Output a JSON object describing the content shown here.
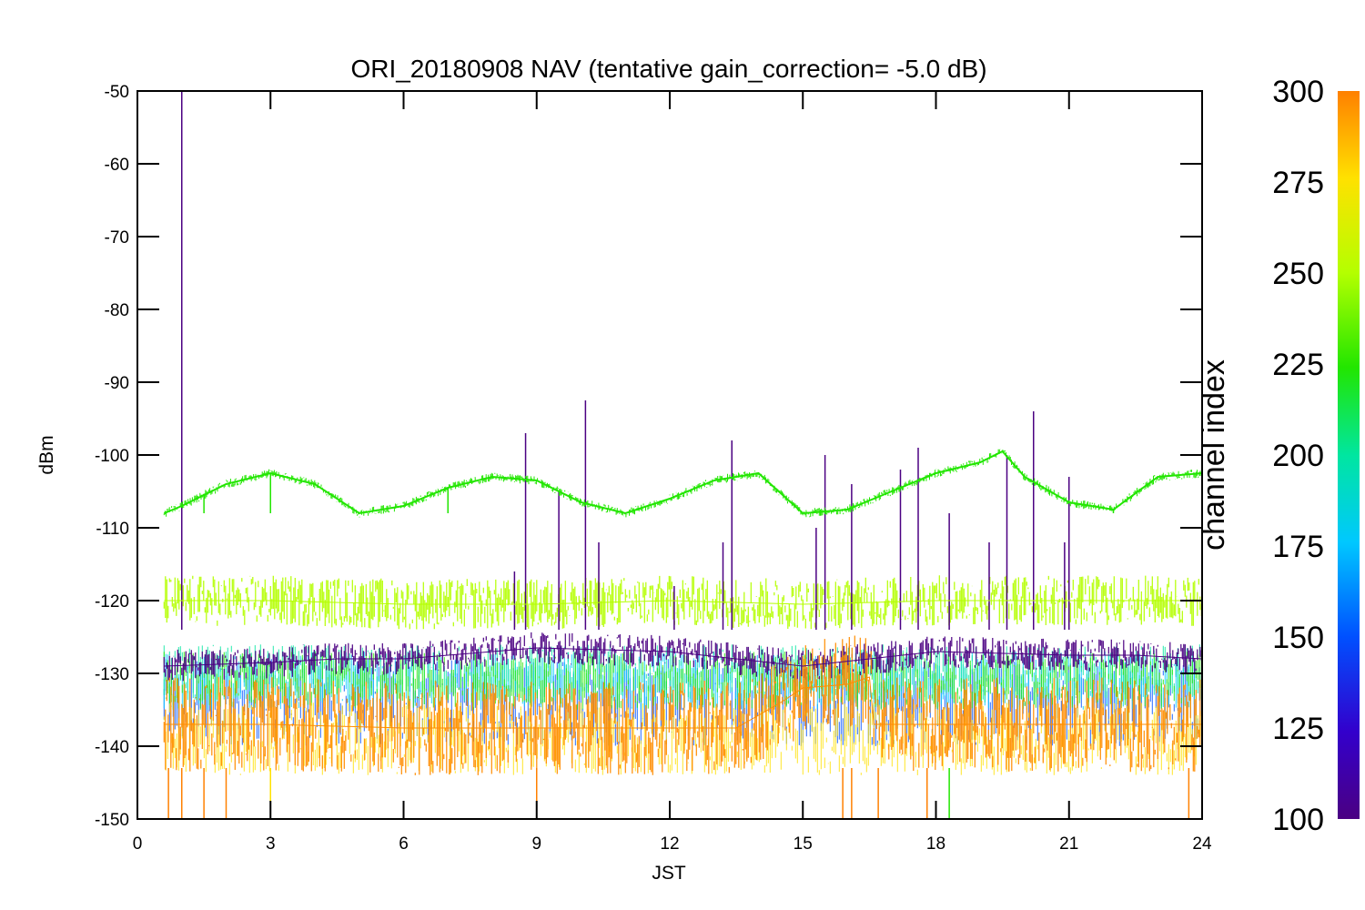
{
  "chart_data": {
    "type": "line",
    "title": "ORI_20180908 NAV (tentative gain_correction= -5.0 dB)",
    "xlabel": "JST",
    "ylabel": "dBm",
    "xlim": [
      0,
      24
    ],
    "ylim": [
      -150,
      -50
    ],
    "xticks": [
      "0",
      "3",
      "6",
      "9",
      "12",
      "15",
      "18",
      "21",
      "24"
    ],
    "yticks": [
      "-50",
      "-60",
      "-70",
      "-80",
      "-90",
      "-100",
      "-110",
      "-120",
      "-130",
      "-140",
      "-150"
    ],
    "grid": false,
    "colorbar": {
      "label": "channel index",
      "range": [
        100,
        300
      ],
      "ticks": [
        "300",
        "275",
        "250",
        "225",
        "200",
        "175",
        "150",
        "125",
        "100"
      ],
      "colors": [
        "#4b0082",
        "#3300cc",
        "#0050ff",
        "#00c8ff",
        "#00e6a0",
        "#22e600",
        "#b4ff00",
        "#ffe100",
        "#ff8c00",
        "#ff8000"
      ]
    },
    "series": [
      {
        "channel": 240,
        "color": "#22e600",
        "x": [
          0.6,
          1,
          2,
          3,
          4,
          5,
          6,
          7,
          8,
          9,
          10,
          11,
          12,
          13,
          14,
          15,
          16,
          17,
          18,
          19,
          19.5,
          20,
          21,
          22,
          23,
          24
        ],
        "y": [
          -108,
          -107,
          -104,
          -102.5,
          -104,
          -108,
          -107,
          -104.5,
          -103,
          -103.5,
          -106.5,
          -108,
          -106,
          -103.5,
          -102.5,
          -108,
          -107.5,
          -105,
          -102.5,
          -101,
          -99.5,
          -103,
          -106.5,
          -107.5,
          -103,
          -102.5
        ]
      },
      {
        "channel": 265,
        "color": "#b4ff00",
        "x": [
          0.6,
          3,
          6,
          9,
          12,
          15,
          18,
          21,
          24
        ],
        "y": [
          -120,
          -120,
          -120.5,
          -120.5,
          -120,
          -120.5,
          -120,
          -120,
          -120
        ]
      },
      {
        "channel": 110,
        "color": "#4b0082",
        "x": [
          0.6,
          3,
          4.5,
          6,
          8,
          9,
          12,
          15,
          16.5,
          18,
          21,
          22.5,
          24
        ],
        "y": [
          -129,
          -128.5,
          -128,
          -128,
          -127,
          -126.5,
          -127,
          -129,
          -128,
          -127,
          -127.5,
          -127.5,
          -128
        ]
      },
      {
        "channel": 290,
        "color": "#ff8c00",
        "x": [
          0.6,
          3,
          6,
          9,
          12,
          13.5,
          14.5,
          15,
          16,
          16.5,
          16.6,
          18,
          21,
          24
        ],
        "y": [
          -137,
          -137,
          -137.5,
          -137.5,
          -137.5,
          -137.5,
          -134,
          -132,
          -131.5,
          -130.5,
          -137,
          -137,
          -137,
          -137
        ]
      }
    ],
    "spikes": [
      {
        "x": 1.0,
        "y": -50,
        "color": "#4b0082"
      },
      {
        "x": 8.75,
        "y": -97,
        "color": "#4b0082"
      },
      {
        "x": 10.1,
        "y": -92.5,
        "color": "#4b0082"
      },
      {
        "x": 8.5,
        "y": -116,
        "color": "#4b0082"
      },
      {
        "x": 9.5,
        "y": -105,
        "color": "#4b0082"
      },
      {
        "x": 10.4,
        "y": -112,
        "color": "#4b0082"
      },
      {
        "x": 12.1,
        "y": -118,
        "color": "#4b0082"
      },
      {
        "x": 13.4,
        "y": -98,
        "color": "#4b0082"
      },
      {
        "x": 13.2,
        "y": -112,
        "color": "#4b0082"
      },
      {
        "x": 15.5,
        "y": -100,
        "color": "#4b0082"
      },
      {
        "x": 15.3,
        "y": -110,
        "color": "#4b0082"
      },
      {
        "x": 16.1,
        "y": -104,
        "color": "#4b0082"
      },
      {
        "x": 17.2,
        "y": -102,
        "color": "#4b0082"
      },
      {
        "x": 17.6,
        "y": -99,
        "color": "#4b0082"
      },
      {
        "x": 18.3,
        "y": -108,
        "color": "#4b0082"
      },
      {
        "x": 19.2,
        "y": -112,
        "color": "#4b0082"
      },
      {
        "x": 19.6,
        "y": -100,
        "color": "#4b0082"
      },
      {
        "x": 20.2,
        "y": -94,
        "color": "#4b0082"
      },
      {
        "x": 20.9,
        "y": -112,
        "color": "#4b0082"
      },
      {
        "x": 21.0,
        "y": -103,
        "color": "#4b0082"
      },
      {
        "x": 1.5,
        "y": -108,
        "color": "#22e600"
      },
      {
        "x": 3.0,
        "y": -108,
        "color": "#22e600"
      },
      {
        "x": 7.0,
        "y": -108,
        "color": "#22e600"
      },
      {
        "x": 22.0,
        "y": -108,
        "color": "#22e600"
      }
    ],
    "dips": [
      {
        "x": 0.7,
        "y": -150,
        "color": "#ff8000"
      },
      {
        "x": 1.0,
        "y": -150,
        "color": "#ff8000"
      },
      {
        "x": 1.5,
        "y": -150,
        "color": "#ff8000"
      },
      {
        "x": 2.0,
        "y": -150,
        "color": "#ff8000"
      },
      {
        "x": 3.0,
        "y": -149,
        "color": "#ffe100"
      },
      {
        "x": 9.0,
        "y": -150,
        "color": "#ff8000"
      },
      {
        "x": 15.9,
        "y": -150,
        "color": "#ff8000"
      },
      {
        "x": 16.1,
        "y": -150,
        "color": "#ff8000"
      },
      {
        "x": 16.7,
        "y": -150,
        "color": "#ff8000"
      },
      {
        "x": 17.8,
        "y": -150,
        "color": "#ff8000"
      },
      {
        "x": 18.3,
        "y": -150,
        "color": "#22e600"
      },
      {
        "x": 23.7,
        "y": -150,
        "color": "#ff8000"
      }
    ]
  }
}
